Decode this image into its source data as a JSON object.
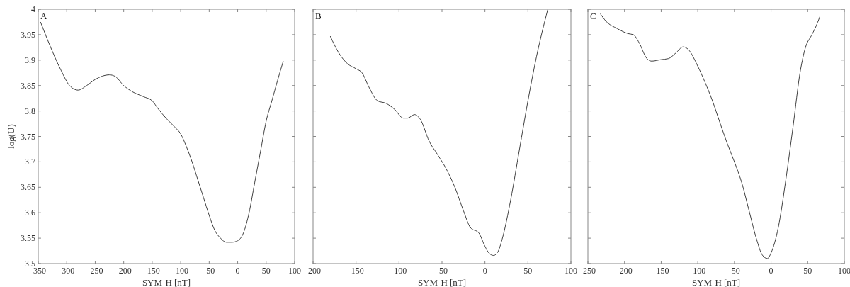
{
  "chart_data": [
    {
      "type": "line",
      "title": "A",
      "xlabel": "SYM-H [nT]",
      "ylabel": "log(U)",
      "xlim": [
        -350,
        100
      ],
      "xticks": [
        -350,
        -300,
        -250,
        -200,
        -150,
        -100,
        -50,
        0,
        50,
        100
      ],
      "ylim": [
        3.5,
        4
      ],
      "yticks": [
        3.5,
        3.55,
        3.6,
        3.65,
        3.7,
        3.75,
        3.8,
        3.85,
        3.9,
        3.95,
        4
      ],
      "color": "#404040",
      "x": [
        -346,
        -330,
        -310,
        -295,
        -280,
        -265,
        -250,
        -225,
        -215,
        -200,
        -185,
        -165,
        -150,
        -140,
        -125,
        -110,
        -100,
        -90,
        -80,
        -70,
        -60,
        -50,
        -40,
        -30,
        -20,
        -10,
        0,
        10,
        20,
        30,
        40,
        50,
        60,
        70,
        80
      ],
      "values": [
        3.975,
        3.93,
        3.88,
        3.85,
        3.841,
        3.85,
        3.862,
        3.871,
        3.868,
        3.85,
        3.838,
        3.828,
        3.82,
        3.805,
        3.785,
        3.768,
        3.755,
        3.73,
        3.7,
        3.665,
        3.63,
        3.595,
        3.565,
        3.55,
        3.542,
        3.542,
        3.545,
        3.56,
        3.6,
        3.66,
        3.72,
        3.78,
        3.82,
        3.86,
        3.898
      ]
    },
    {
      "type": "line",
      "title": "B",
      "xlabel": "SYM-H [nT]",
      "xlim": [
        -200,
        100
      ],
      "xticks": [
        -200,
        -150,
        -100,
        -50,
        0,
        50,
        100
      ],
      "ylim": [
        3.5,
        4
      ],
      "yticks": [
        3.5,
        3.55,
        3.6,
        3.65,
        3.7,
        3.75,
        3.8,
        3.85,
        3.9,
        3.95,
        4
      ],
      "tick_labels": "x",
      "color": "#404040",
      "x": [
        -180,
        -170,
        -160,
        -150,
        -143,
        -135,
        -125,
        -115,
        -105,
        -95,
        -90,
        -82,
        -75,
        -65,
        -55,
        -45,
        -35,
        -25,
        -17,
        -7,
        0,
        5,
        10,
        15,
        20,
        30,
        40,
        50,
        60,
        73
      ],
      "values": [
        3.947,
        3.914,
        3.893,
        3.883,
        3.875,
        3.847,
        3.82,
        3.815,
        3.803,
        3.786,
        3.786,
        3.793,
        3.783,
        3.741,
        3.714,
        3.686,
        3.65,
        3.604,
        3.571,
        3.56,
        3.534,
        3.52,
        3.516,
        3.523,
        3.548,
        3.626,
        3.723,
        3.82,
        3.907,
        3.999
      ]
    },
    {
      "type": "line",
      "title": "C",
      "xlabel": "SYM-H [nT]",
      "xlim": [
        -250,
        100
      ],
      "xticks": [
        -250,
        -200,
        -150,
        -100,
        -50,
        0,
        50,
        100
      ],
      "ylim": [
        3.5,
        4
      ],
      "yticks": [
        3.5,
        3.55,
        3.6,
        3.65,
        3.7,
        3.75,
        3.8,
        3.85,
        3.9,
        3.95,
        4
      ],
      "tick_labels": "x",
      "color": "#404040",
      "x": [
        -233,
        -225,
        -210,
        -195,
        -188,
        -180,
        -170,
        -163,
        -150,
        -140,
        -130,
        -120,
        -113,
        -100,
        -90,
        -80,
        -70,
        -60,
        -50,
        -40,
        -30,
        -20,
        -12,
        -5,
        0,
        10,
        20,
        30,
        40,
        47,
        55,
        60,
        67
      ],
      "values": [
        3.991,
        3.976,
        3.962,
        3.952,
        3.95,
        3.934,
        3.904,
        3.898,
        3.901,
        3.903,
        3.914,
        3.926,
        3.921,
        3.888,
        3.856,
        3.82,
        3.778,
        3.737,
        3.7,
        3.659,
        3.604,
        3.549,
        3.517,
        3.51,
        3.521,
        3.572,
        3.663,
        3.769,
        3.879,
        3.925,
        3.948,
        3.962,
        3.987
      ]
    }
  ]
}
